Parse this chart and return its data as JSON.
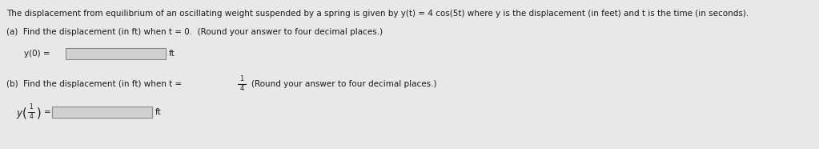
{
  "background_color": "#e8e8e8",
  "text_color": "#1a1a1a",
  "title_text": "The displacement from equilibrium of an oscillating weight suspended by a spring is given by y(t) = 4 cos(5t) where y is the displacement (in feet) and t is the time (in seconds).",
  "part_a_label": "(a)  Find the displacement (in ft) when t = 0.  (Round your answer to four decimal places.)",
  "part_b_label_pre": "(b)  Find the displacement (in ft) when t =",
  "part_b_label_post": "(Round your answer to four decimal places.)",
  "ft_label": "ft",
  "box_facecolor": "#d0d0d0",
  "box_edgecolor": "#888888",
  "font_size": 7.5,
  "figwidth": 10.23,
  "figheight": 1.86,
  "dpi": 100
}
